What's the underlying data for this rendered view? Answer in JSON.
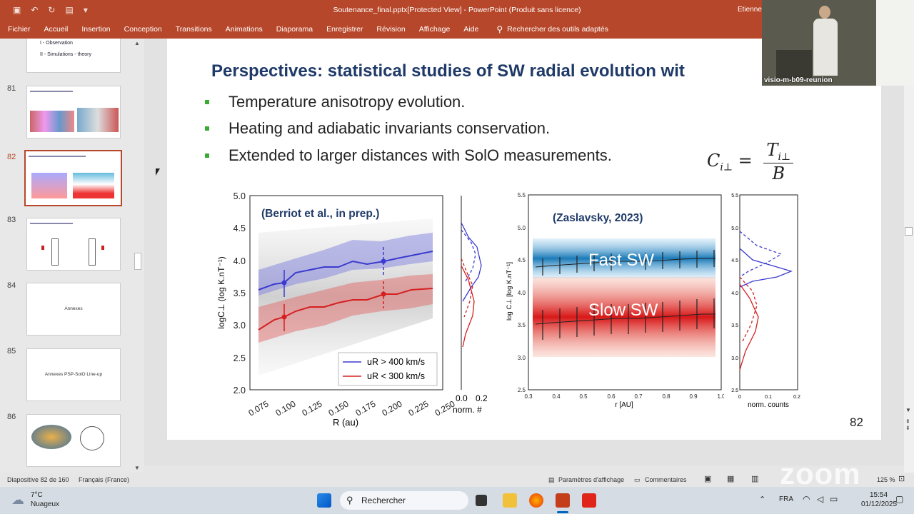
{
  "window": {
    "doc_title": "Soutenance_final.pptx[Protected View]  -  PowerPoint (Produit sans licence)",
    "user": "Etienne"
  },
  "ribbon": {
    "tabs": [
      "Fichier",
      "Accueil",
      "Insertion",
      "Conception",
      "Transitions",
      "Animations",
      "Diaporama",
      "Enregistrer",
      "Révision",
      "Affichage",
      "Aide"
    ],
    "search": "Rechercher des outils adaptés"
  },
  "thumbs": {
    "top_lines": [
      "I - Observation",
      "II - Simulations - theory"
    ],
    "items": [
      {
        "num": "81",
        "title": ""
      },
      {
        "num": "82",
        "title": ""
      },
      {
        "num": "83",
        "title": ""
      },
      {
        "num": "84",
        "title": "Annexes"
      },
      {
        "num": "85",
        "title": "Annexes PSP-SolO Line-up"
      },
      {
        "num": "86",
        "title": ""
      }
    ]
  },
  "slide": {
    "title": "Perspectives: statistical studies of SW radial evolution wit",
    "bullets": [
      "Temperature anisotropy evolution.",
      "Heating and adiabatic invariants conservation.",
      "Extended to larger distances with SolO measurements."
    ],
    "formula": {
      "lhs": "C",
      "lhs_sub": "i⊥",
      "eq": "=",
      "num": "T",
      "num_sub": "i⊥",
      "den": "B"
    },
    "number": "82",
    "left_plot": {
      "label": "(Berriot et al., in prep.)",
      "ylabel": "logC⊥ (log K.nT⁻¹)",
      "xlabel": "R (au)",
      "yticks": [
        "5.0",
        "4.5",
        "4.0",
        "3.5",
        "3.0",
        "2.5",
        "2.0"
      ],
      "xticks": [
        "0.075",
        "0.100",
        "0.125",
        "0.150",
        "0.175",
        "0.200",
        "0.225",
        "0.250"
      ],
      "legend_fast": "uR > 400 km/s",
      "legend_slow": "uR < 300 km/s",
      "hist_xticks": [
        "0.0",
        "0.2"
      ],
      "hist_xlabel": "norm. #"
    },
    "right_plot": {
      "label": "(Zaslavsky, 2023)",
      "ylabel": "log C⊥ [log K.nT⁻¹]",
      "xlabel": "r [AU]",
      "yticks": [
        "5.5",
        "5.0",
        "4.5",
        "4.0",
        "3.5",
        "3.0",
        "2.5"
      ],
      "xticks": [
        "0.3",
        "0.4",
        "0.5",
        "0.6",
        "0.7",
        "0.8",
        "0.9",
        "1.0"
      ],
      "fast": "Fast SW",
      "slow": "Slow SW",
      "hist_xticks": [
        "0",
        "0.1",
        "0.2"
      ],
      "hist_xlabel": "norm. counts"
    }
  },
  "status": {
    "slide": "Diapositive 82 de 160",
    "lang": "Français (France)",
    "display": "Paramètres d'affichage",
    "comments": "Commentaires",
    "zoom": "125 %"
  },
  "taskbar": {
    "temp": "7°C",
    "weather": "Nuageux",
    "search": "Rechercher",
    "lang": "FRA",
    "time": "15:54",
    "date": "01/12/2025"
  },
  "video": {
    "label": "visio-m-b09-reunion",
    "watermark": "zoom"
  },
  "colors": {
    "accent": "#b7472a",
    "fast": "#3b3bcf",
    "slow": "#d62020",
    "title": "#1f3a68"
  }
}
